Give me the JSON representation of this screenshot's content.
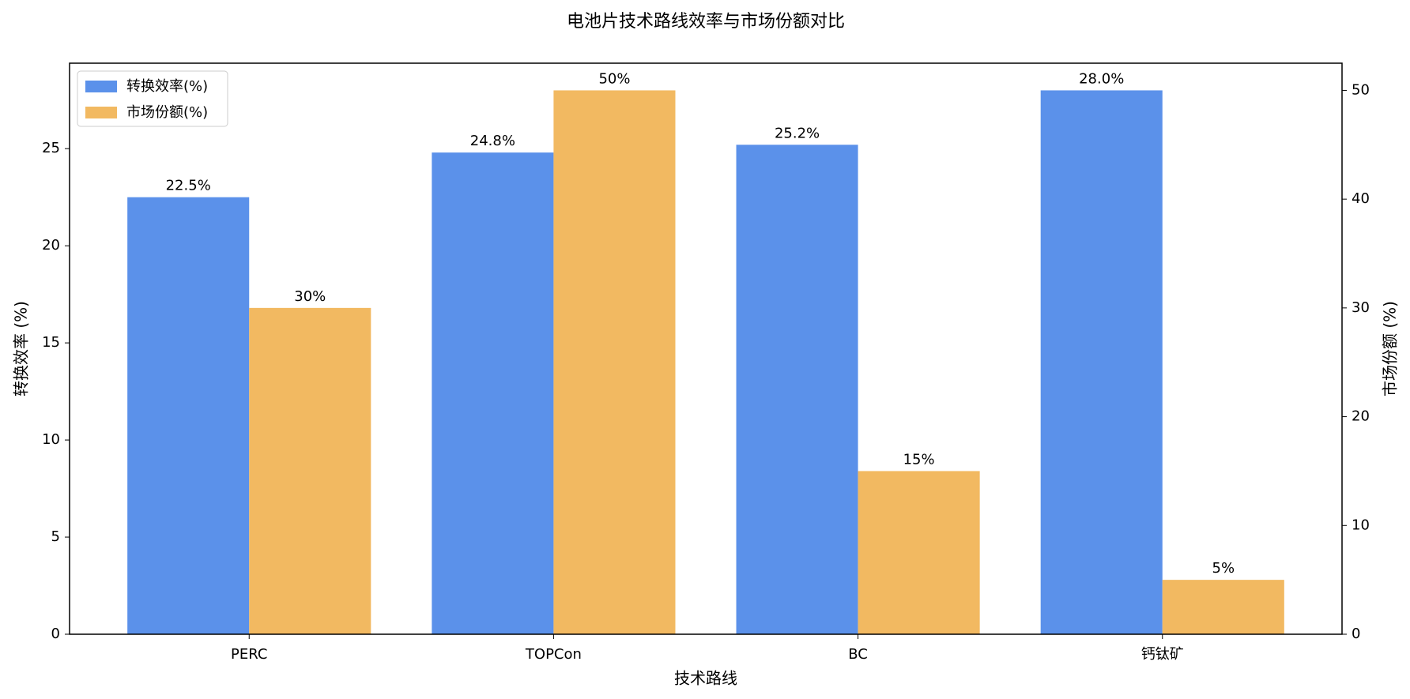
{
  "chart_data": {
    "type": "bar",
    "title": "电池片技术路线效率与市场份额对比",
    "x_label": "技术路线",
    "y_label": "转换效率 (%)",
    "y2_label": "市场份额 (%)",
    "categories": [
      "PERC",
      "TOPCon",
      "BC",
      "钙钛矿"
    ],
    "series": [
      {
        "name": "转换效率(%)",
        "color": "#5b91ea",
        "values": [
          22.5,
          24.8,
          25.2,
          28.0
        ],
        "value_labels": [
          "22.5%",
          "24.8%",
          "25.2%",
          "28.0%"
        ]
      },
      {
        "name": "市场份额(%)",
        "color": "#f2b961",
        "axis": "y2",
        "values": [
          30,
          50,
          15,
          5
        ],
        "value_labels": [
          "30%",
          "50%",
          "15%",
          "5%"
        ]
      }
    ],
    "ylim": [
      0,
      29.4
    ],
    "yticks": [
      0,
      5,
      10,
      15,
      20,
      25
    ],
    "y2lim": [
      0,
      52.5
    ],
    "y2ticks": [
      0,
      10,
      20,
      30,
      40,
      50
    ],
    "y_label_color": "#5b91ea",
    "y2_label_color": "#f2b961",
    "legend": "upper-left"
  }
}
